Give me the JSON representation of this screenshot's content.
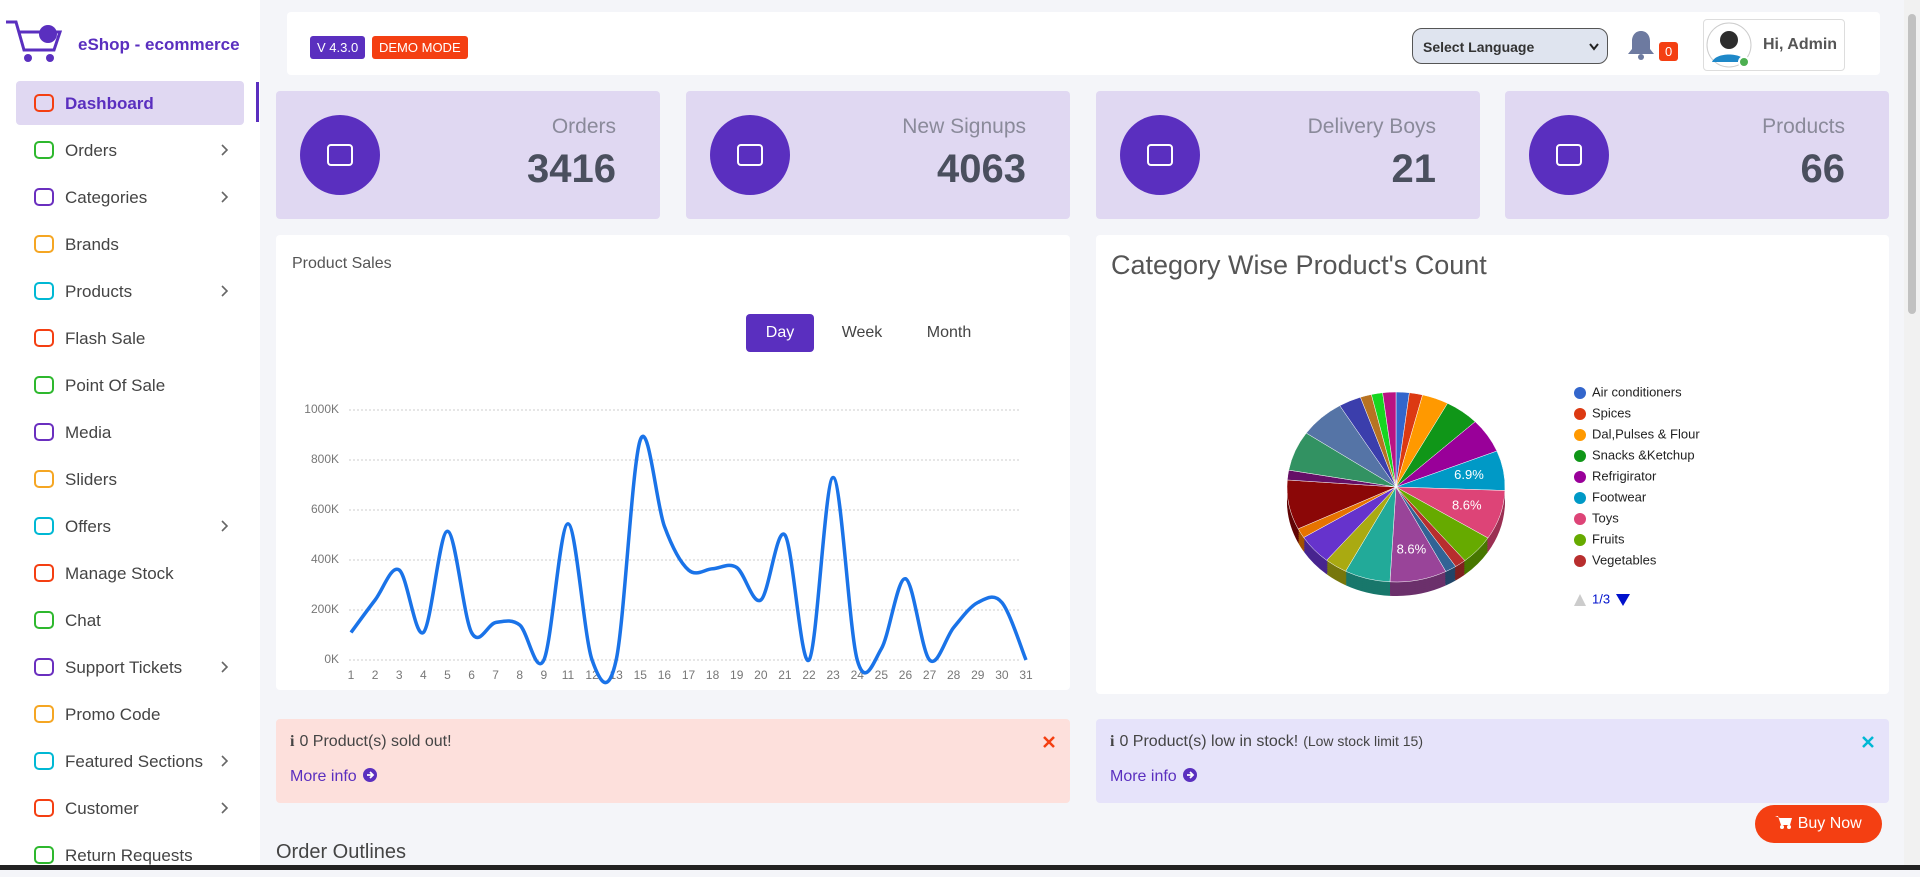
{
  "sidebar": {
    "brand": "eShop - ecommerce",
    "menu": [
      {
        "label": "Dashboard",
        "expandable": false,
        "active": true
      },
      {
        "label": "Orders",
        "expandable": true
      },
      {
        "label": "Categories",
        "expandable": true
      },
      {
        "label": "Brands",
        "expandable": false
      },
      {
        "label": "Products",
        "expandable": true
      },
      {
        "label": "Flash Sale",
        "expandable": false
      },
      {
        "label": "Point Of Sale",
        "expandable": false
      },
      {
        "label": "Media",
        "expandable": false
      },
      {
        "label": "Sliders",
        "expandable": false
      },
      {
        "label": "Offers",
        "expandable": true
      },
      {
        "label": "Manage Stock",
        "expandable": false
      },
      {
        "label": "Chat",
        "expandable": false
      },
      {
        "label": "Support Tickets",
        "expandable": true
      },
      {
        "label": "Promo Code",
        "expandable": false
      },
      {
        "label": "Featured Sections",
        "expandable": true
      },
      {
        "label": "Customer",
        "expandable": true
      },
      {
        "label": "Return Requests",
        "expandable": false
      }
    ]
  },
  "header": {
    "version": "V 4.3.0",
    "mode": "DEMO MODE",
    "language": "Select Language",
    "notifications": 0,
    "greeting": "Hi, Admin"
  },
  "stats": [
    {
      "label": "Orders",
      "value": 3416
    },
    {
      "label": "New Signups",
      "value": 4063
    },
    {
      "label": "Delivery Boys",
      "value": 21
    },
    {
      "label": "Products",
      "value": 66
    }
  ],
  "sales_controls": [
    "Day",
    "Week",
    "Month"
  ],
  "chart_data": [
    {
      "type": "line",
      "title": "Product Sales",
      "color": "#1a73e8",
      "grid": true,
      "categories": [
        "1",
        "2",
        "3",
        "4",
        "5",
        "6",
        "7",
        "8",
        "9",
        "11",
        "12",
        "13",
        "15",
        "16",
        "17",
        "18",
        "19",
        "20",
        "21",
        "22",
        "23",
        "24",
        "25",
        "26",
        "27",
        "28",
        "29",
        "30",
        "31"
      ],
      "values": [
        110000,
        240000,
        360000,
        110000,
        515000,
        110000,
        150000,
        140000,
        0,
        545000,
        0,
        0,
        880000,
        535000,
        360000,
        365000,
        370000,
        240000,
        500000,
        0,
        730000,
        0,
        45000,
        325000,
        0,
        130000,
        230000,
        230000,
        0
      ],
      "ylim": [
        0,
        1000000
      ],
      "yticks": [
        {
          "value": 0,
          "label": "0K"
        },
        {
          "value": 200000,
          "label": "200K"
        },
        {
          "value": 400000,
          "label": "400K"
        },
        {
          "value": 600000,
          "label": "600K"
        },
        {
          "value": 800000,
          "label": "800K"
        },
        {
          "value": 1000000,
          "label": "1000K"
        }
      ]
    },
    {
      "type": "pie",
      "title": "Category Wise Product's Count",
      "legend": "right",
      "legend_page": "1/3",
      "categories": [
        "Air conditioners",
        "Spices",
        "Dal,Pulses & Flour",
        "Snacks &Ketchup",
        "Refrigirator",
        "Footwear",
        "Toys",
        "Fruits",
        "Vegetables",
        null,
        null,
        null,
        null,
        null,
        null,
        null,
        null,
        null,
        null,
        null,
        null,
        null,
        null
      ],
      "values": [
        2,
        2,
        4,
        5.2,
        6,
        6.9,
        8.6,
        5.2,
        1.7,
        1.7,
        8.6,
        6.9,
        3.4,
        5.2,
        1.7,
        8.6,
        1.7,
        6.9,
        6.9,
        3.4,
        1.7,
        1.7,
        2
      ],
      "value_labels": [
        null,
        null,
        null,
        null,
        null,
        "6.9%",
        "8.6%",
        null,
        null,
        null,
        "8.6%",
        null,
        null,
        null,
        null,
        null,
        null,
        null,
        null,
        null,
        null,
        null,
        null
      ],
      "colors": [
        "#3366cc",
        "#dc3912",
        "#ff9900",
        "#109618",
        "#990099",
        "#0099c6",
        "#dd4477",
        "#66aa00",
        "#b82e2e",
        "#316395",
        "#994499",
        "#22aa99",
        "#aaaa11",
        "#6633cc",
        "#e67300",
        "#8b0707",
        "#651067",
        "#329262",
        "#5574a6",
        "#3b3eac",
        "#b77322",
        "#16d620",
        "#b91383"
      ]
    }
  ],
  "alerts": [
    {
      "message": "0 Product(s) sold out!",
      "link": "More info"
    },
    {
      "message": "0 Product(s) low in stock!",
      "note": "(Low stock limit 15)",
      "link": "More info"
    }
  ],
  "buy_now": "Buy Now",
  "section_title": "Order Outlines"
}
